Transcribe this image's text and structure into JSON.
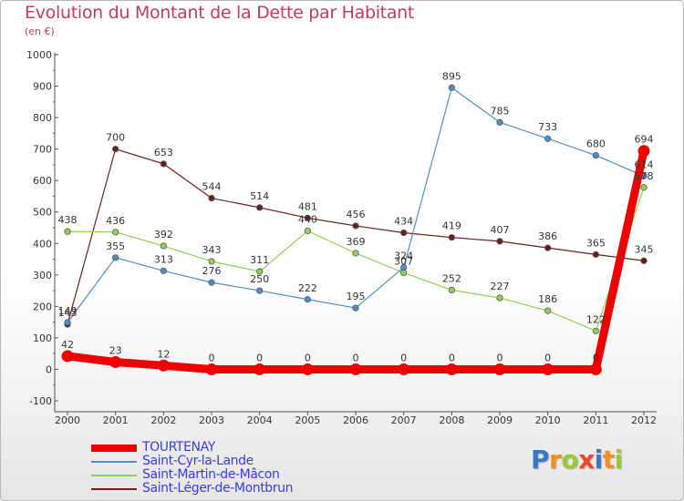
{
  "header": {
    "title": "Evolution du Montant de la Dette par Habitant",
    "unit": "(en €)"
  },
  "colors": {
    "title": "#c0396a",
    "axis": "#555555",
    "legend_text": "#3c3cdc"
  },
  "chart_data": {
    "type": "line",
    "title": "Evolution du Montant de la Dette par Habitant",
    "ylabel": "(en €)",
    "xlabel": "",
    "x": [
      "2000",
      "2001",
      "2002",
      "2003",
      "2004",
      "2005",
      "2006",
      "2007",
      "2008",
      "2009",
      "2010",
      "2011",
      "2012"
    ],
    "ylim": [
      -100,
      1000
    ],
    "yticks": [
      "-100",
      "0",
      "100",
      "200",
      "300",
      "400",
      "500",
      "600",
      "700",
      "800",
      "900",
      "1000"
    ],
    "grid": false,
    "legend_position": "bottom-left",
    "series": [
      {
        "name": "TOURTENAY",
        "color": "#ee0000",
        "values": [
          42,
          23,
          12,
          0,
          0,
          0,
          0,
          0,
          0,
          0,
          0,
          0,
          694
        ],
        "labels": [
          "42",
          "23",
          "12",
          "0",
          "0",
          "0",
          "0",
          "0",
          "0",
          "0",
          "0",
          "0",
          "694"
        ]
      },
      {
        "name": "Saint-Cyr-la-Lande",
        "color": "#4f8fc8",
        "values": [
          149,
          355,
          313,
          276,
          250,
          222,
          195,
          324,
          895,
          785,
          733,
          680,
          614
        ],
        "labels": [
          "149",
          "355",
          "313",
          "276",
          "250",
          "222",
          "195",
          "324",
          "895",
          "785",
          "733",
          "680",
          "614"
        ]
      },
      {
        "name": "Saint-Martin-de-Mâcon",
        "color": "#8ed354",
        "values": [
          438,
          436,
          392,
          343,
          311,
          440,
          369,
          307,
          252,
          227,
          186,
          122,
          578
        ],
        "labels": [
          "438",
          "436",
          "392",
          "343",
          "311",
          "440",
          "369",
          "307",
          "252",
          "227",
          "186",
          "122",
          "578"
        ]
      },
      {
        "name": "Saint-Léger-de-Montbrun",
        "color": "#6a1f1f",
        "values": [
          143,
          700,
          653,
          544,
          514,
          481,
          456,
          434,
          419,
          407,
          386,
          365,
          345
        ],
        "labels": [
          "143",
          "700",
          "653",
          "544",
          "514",
          "481",
          "456",
          "434",
          "419",
          "407",
          "386",
          "365",
          "345"
        ]
      }
    ]
  },
  "logo": {
    "letters": [
      {
        "ch": "P",
        "color": "#3a78c2"
      },
      {
        "ch": "r",
        "color": "#f0901e"
      },
      {
        "ch": "o",
        "color": "#9ac83a"
      },
      {
        "ch": "x",
        "color": "#e84a2a"
      },
      {
        "ch": "i",
        "color": "#3a78c2"
      },
      {
        "ch": "t",
        "color": "#f0901e"
      },
      {
        "ch": "i",
        "color": "#9ac83a"
      }
    ]
  }
}
